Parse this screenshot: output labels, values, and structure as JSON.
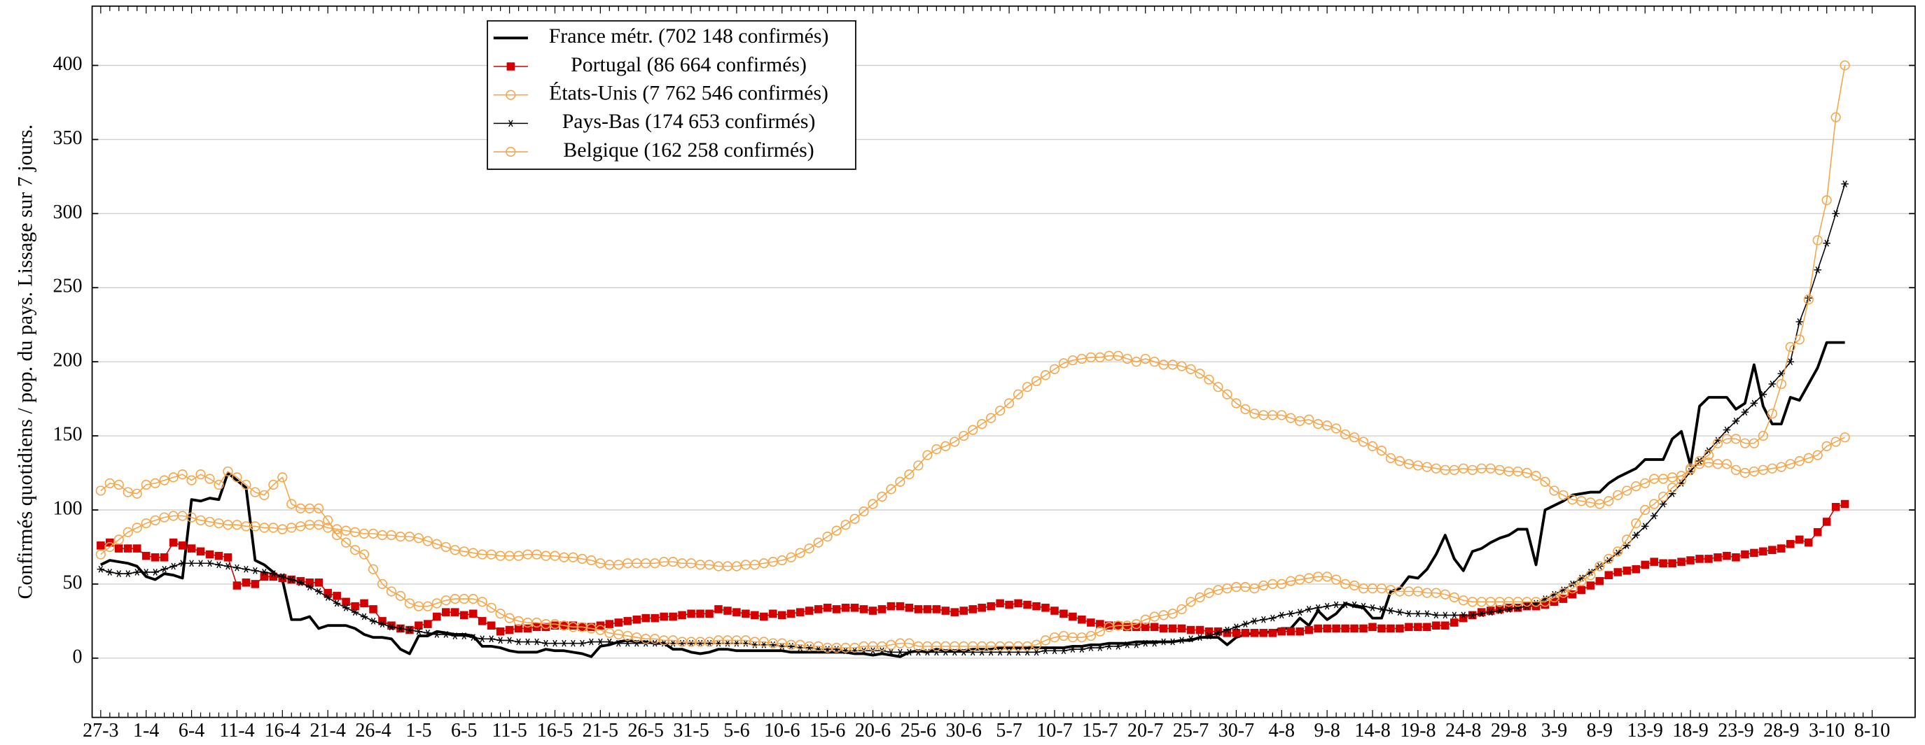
{
  "chart_data": {
    "type": "line",
    "ylabel": "Confirmés quotidiens / pop. du pays. Lissage sur 7 jours.",
    "categories": [
      "27-3",
      null,
      null,
      null,
      null,
      "1-4",
      null,
      null,
      null,
      null,
      "6-4",
      null,
      null,
      null,
      null,
      "11-4",
      null,
      null,
      null,
      null,
      "16-4",
      null,
      null,
      null,
      null,
      "21-4",
      null,
      null,
      null,
      null,
      "26-4",
      null,
      null,
      null,
      null,
      "1-5",
      null,
      null,
      null,
      null,
      "6-5",
      null,
      null,
      null,
      null,
      "11-5",
      null,
      null,
      null,
      null,
      "16-5",
      null,
      null,
      null,
      null,
      "21-5",
      null,
      null,
      null,
      null,
      "26-5",
      null,
      null,
      null,
      null,
      "31-5",
      null,
      null,
      null,
      null,
      "5-6",
      null,
      null,
      null,
      null,
      "10-6",
      null,
      null,
      null,
      null,
      "15-6",
      null,
      null,
      null,
      null,
      "20-6",
      null,
      null,
      null,
      null,
      "25-6",
      null,
      null,
      null,
      null,
      "30-6",
      null,
      null,
      null,
      null,
      "5-7",
      null,
      null,
      null,
      null,
      "10-7",
      null,
      null,
      null,
      null,
      "15-7",
      null,
      null,
      null,
      null,
      "20-7",
      null,
      null,
      null,
      null,
      "25-7",
      null,
      null,
      null,
      null,
      "30-7",
      null,
      null,
      null,
      null,
      "4-8",
      null,
      null,
      null,
      null,
      "9-8",
      null,
      null,
      null,
      null,
      "14-8",
      null,
      null,
      null,
      null,
      "19-8",
      null,
      null,
      null,
      null,
      "24-8",
      null,
      null,
      null,
      null,
      "29-8",
      null,
      null,
      null,
      null,
      "3-9",
      null,
      null,
      null,
      null,
      "8-9",
      null,
      null,
      null,
      null,
      "13-9",
      null,
      null,
      null,
      null,
      "18-9",
      null,
      null,
      null,
      null,
      "23-9",
      null,
      null,
      null,
      null,
      "28-9",
      null,
      null,
      null,
      null,
      "3-10",
      null,
      null,
      null,
      null,
      "8-10"
    ],
    "ylim": [
      -40,
      440
    ],
    "yticks": [
      0,
      50,
      100,
      150,
      200,
      250,
      300,
      350,
      400
    ],
    "grid": true,
    "legend": "upper left",
    "series": [
      {
        "name": "France métr. (702 148 confirmés)",
        "color": "#000000",
        "marker": "none",
        "values": [
          63,
          66,
          65,
          64,
          62,
          55,
          53,
          57,
          56,
          54,
          107,
          106,
          108,
          107,
          125,
          120,
          115,
          66,
          63,
          58,
          53,
          26,
          26,
          28,
          20,
          22,
          22,
          22,
          20,
          16,
          14,
          14,
          13,
          6,
          3,
          15,
          15,
          18,
          17,
          16,
          16,
          15,
          8,
          8,
          7,
          5,
          4,
          4,
          4,
          6,
          5,
          5,
          4,
          3,
          1,
          8,
          9,
          11,
          12,
          11,
          11,
          10,
          10,
          6,
          6,
          4,
          3,
          4,
          6,
          6,
          5,
          5,
          5,
          5,
          5,
          5,
          4,
          4,
          4,
          4,
          4,
          4,
          4,
          3,
          3,
          2,
          3,
          2,
          1,
          4,
          5,
          4,
          6,
          5,
          5,
          5,
          6,
          6,
          6,
          7,
          7,
          7,
          7,
          7,
          7,
          7,
          7,
          8,
          8,
          9,
          9,
          10,
          10,
          10,
          11,
          11,
          11,
          11,
          11,
          12,
          12,
          14,
          14,
          14,
          9,
          14,
          16,
          17,
          17,
          18,
          20,
          20,
          27,
          22,
          32,
          26,
          30,
          37,
          35,
          34,
          27,
          27,
          45,
          47,
          55,
          54,
          60,
          70,
          83,
          67,
          59,
          72,
          74,
          78,
          81,
          83,
          87,
          87,
          63,
          100,
          103,
          106,
          110,
          111,
          112,
          112,
          118,
          122,
          125,
          128,
          134,
          134,
          134,
          148,
          153,
          130,
          170,
          176,
          176,
          176,
          168,
          172,
          198,
          170,
          158,
          158,
          176,
          174,
          185,
          196,
          213,
          213,
          213,
          null,
          null,
          null
        ]
      },
      {
        "name": "Portugal (86 664 confirmés)",
        "color": "#d40000",
        "marker": "square",
        "values": [
          76,
          78,
          74,
          74,
          74,
          69,
          68,
          68,
          78,
          76,
          74,
          72,
          70,
          69,
          68,
          49,
          51,
          50,
          55,
          55,
          54,
          53,
          52,
          51,
          51,
          44,
          42,
          38,
          35,
          37,
          33,
          25,
          22,
          20,
          19,
          22,
          23,
          28,
          31,
          31,
          29,
          30,
          25,
          22,
          18,
          19,
          20,
          20,
          21,
          21,
          22,
          22,
          22,
          21,
          21,
          22,
          23,
          24,
          25,
          26,
          27,
          27,
          28,
          28,
          29,
          30,
          30,
          30,
          33,
          32,
          31,
          30,
          29,
          28,
          30,
          29,
          30,
          31,
          32,
          33,
          34,
          33,
          34,
          34,
          33,
          32,
          33,
          35,
          35,
          34,
          33,
          33,
          33,
          32,
          31,
          32,
          33,
          34,
          35,
          37,
          36,
          37,
          36,
          35,
          34,
          32,
          30,
          28,
          26,
          24,
          23,
          22,
          22,
          21,
          21,
          21,
          21,
          20,
          20,
          20,
          19,
          19,
          18,
          18,
          17,
          17,
          17,
          17,
          17,
          17,
          18,
          18,
          18,
          19,
          20,
          20,
          20,
          20,
          20,
          20,
          21,
          20,
          20,
          20,
          21,
          21,
          21,
          22,
          22,
          24,
          27,
          29,
          31,
          32,
          33,
          34,
          34,
          35,
          35,
          36,
          38,
          40,
          43,
          46,
          49,
          52,
          56,
          58,
          59,
          60,
          63,
          65,
          64,
          64,
          65,
          66,
          67,
          67,
          68,
          69,
          68,
          70,
          71,
          72,
          73,
          74,
          77,
          80,
          78,
          85,
          92,
          102,
          104,
          null,
          null,
          null
        ]
      },
      {
        "name": "États-Unis (7 762 546 confirmés)",
        "color": "#f5a54a",
        "marker": "circle",
        "values": [
          70,
          75,
          80,
          85,
          88,
          91,
          93,
          95,
          96,
          96,
          95,
          93,
          92,
          91,
          90,
          90,
          89,
          89,
          88,
          88,
          87,
          88,
          89,
          90,
          90,
          88,
          87,
          86,
          85,
          84,
          84,
          83,
          83,
          82,
          82,
          81,
          79,
          77,
          75,
          73,
          72,
          71,
          70,
          70,
          69,
          69,
          69,
          70,
          70,
          69,
          69,
          68,
          68,
          67,
          66,
          64,
          63,
          63,
          64,
          64,
          64,
          64,
          65,
          65,
          64,
          64,
          63,
          63,
          62,
          62,
          62,
          63,
          63,
          64,
          65,
          66,
          68,
          71,
          74,
          78,
          82,
          86,
          90,
          94,
          99,
          104,
          109,
          114,
          119,
          124,
          130,
          137,
          141,
          143,
          146,
          150,
          154,
          158,
          162,
          167,
          172,
          178,
          183,
          187,
          191,
          195,
          199,
          201,
          202,
          203,
          203,
          204,
          204,
          202,
          200,
          202,
          200,
          198,
          198,
          197,
          195,
          192,
          188,
          183,
          178,
          172,
          168,
          165,
          164,
          164,
          164,
          162,
          160,
          161,
          158,
          157,
          155,
          151,
          149,
          146,
          143,
          140,
          135,
          133,
          131,
          130,
          129,
          128,
          127,
          127,
          128,
          127,
          128,
          128,
          127,
          126,
          126,
          125,
          123,
          119,
          113,
          110,
          107,
          106,
          105,
          104,
          106,
          110,
          113,
          116,
          118,
          121,
          121,
          122,
          123,
          127,
          131,
          132,
          131,
          131,
          127,
          125,
          126,
          127,
          128,
          129,
          131,
          133,
          135,
          137,
          143,
          146,
          149,
          null,
          null,
          null
        ]
      },
      {
        "name": "Pays-Bas (174 653 confirmés)",
        "color": "#000000",
        "marker": "star",
        "values": [
          60,
          58,
          57,
          57,
          58,
          58,
          58,
          60,
          62,
          64,
          64,
          64,
          64,
          63,
          62,
          61,
          60,
          59,
          58,
          57,
          55,
          53,
          51,
          48,
          45,
          41,
          37,
          34,
          31,
          28,
          25,
          23,
          21,
          20,
          19,
          18,
          17,
          16,
          16,
          15,
          15,
          14,
          13,
          13,
          12,
          12,
          11,
          11,
          11,
          10,
          10,
          10,
          10,
          10,
          11,
          11,
          11,
          10,
          10,
          10,
          10,
          10,
          10,
          10,
          10,
          10,
          10,
          10,
          10,
          10,
          10,
          10,
          9,
          9,
          9,
          8,
          8,
          7,
          7,
          6,
          6,
          6,
          5,
          5,
          5,
          5,
          5,
          4,
          4,
          4,
          4,
          4,
          4,
          4,
          4,
          4,
          4,
          4,
          4,
          4,
          4,
          4,
          4,
          4,
          5,
          5,
          5,
          6,
          6,
          7,
          7,
          8,
          8,
          9,
          9,
          10,
          10,
          11,
          11,
          12,
          13,
          14,
          15,
          17,
          19,
          21,
          23,
          25,
          26,
          27,
          29,
          30,
          31,
          33,
          34,
          35,
          36,
          36,
          36,
          35,
          34,
          33,
          32,
          31,
          30,
          30,
          30,
          29,
          29,
          29,
          29,
          29,
          30,
          31,
          32,
          33,
          34,
          35,
          37,
          40,
          43,
          46,
          50,
          54,
          58,
          62,
          66,
          71,
          76,
          83,
          89,
          96,
          104,
          111,
          118,
          126,
          133,
          140,
          147,
          154,
          160,
          166,
          172,
          178,
          185,
          192,
          200,
          227,
          243,
          262,
          280,
          300,
          320,
          null,
          null,
          null
        ]
      },
      {
        "name": "Belgique (162 258 confirmés)",
        "color": "#f5a54a",
        "marker": "circle",
        "values": [
          113,
          118,
          117,
          112,
          111,
          117,
          118,
          120,
          122,
          124,
          120,
          124,
          121,
          117,
          126,
          122,
          117,
          112,
          110,
          117,
          122,
          104,
          101,
          101,
          101,
          93,
          83,
          78,
          73,
          70,
          60,
          50,
          45,
          42,
          37,
          35,
          35,
          37,
          39,
          40,
          40,
          40,
          38,
          34,
          30,
          27,
          25,
          24,
          24,
          23,
          23,
          22,
          21,
          21,
          20,
          19,
          17,
          16,
          15,
          14,
          13,
          13,
          12,
          12,
          11,
          11,
          11,
          11,
          12,
          12,
          12,
          12,
          11,
          11,
          10,
          10,
          9,
          9,
          8,
          8,
          7,
          7,
          7,
          7,
          8,
          8,
          8,
          9,
          10,
          10,
          8,
          8,
          8,
          8,
          8,
          8,
          8,
          8,
          8,
          8,
          8,
          8,
          8,
          9,
          12,
          14,
          15,
          14,
          14,
          15,
          18,
          21,
          22,
          22,
          23,
          26,
          28,
          29,
          30,
          33,
          38,
          41,
          44,
          46,
          47,
          48,
          48,
          47,
          49,
          50,
          50,
          52,
          53,
          54,
          55,
          55,
          53,
          50,
          49,
          47,
          47,
          47,
          46,
          45,
          45,
          45,
          44,
          44,
          43,
          41,
          39,
          38,
          38,
          38,
          38,
          38,
          38,
          38,
          38,
          38,
          41,
          44,
          47,
          52,
          56,
          62,
          67,
          72,
          80,
          91,
          100,
          104,
          109,
          115,
          120,
          128,
          133,
          137,
          145,
          148,
          148,
          145,
          145,
          150,
          165,
          185,
          210,
          215,
          242,
          282,
          309,
          365,
          400,
          null,
          null,
          null
        ]
      }
    ]
  }
}
